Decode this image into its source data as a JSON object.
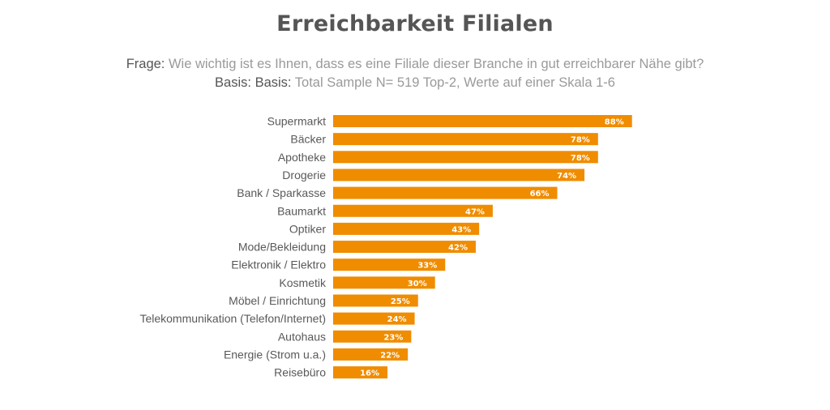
{
  "title": "Erreichbarkeit Filialen",
  "subtitle": {
    "question_label": "Frage:",
    "question": "Wie wichtig ist es Ihnen, dass es eine Filiale dieser Branche in gut erreichbarer Nähe gibt?",
    "basis_label": "Basis: Basis:",
    "basis": "Total Sample N= 519 Top-2, Werte auf einer Skala 1-6"
  },
  "colors": {
    "bar": "#f08c00",
    "label_text": "#595959",
    "value_text": "#ffffff"
  },
  "chart_data": {
    "type": "bar",
    "orientation": "horizontal",
    "title": "Erreichbarkeit Filialen",
    "categories": [
      "Supermarkt",
      "Bäcker",
      "Apotheke",
      "Drogerie",
      "Bank / Sparkasse",
      "Baumarkt",
      "Optiker",
      "Mode/Bekleidung",
      "Elektronik / Elektro",
      "Kosmetik",
      "Möbel / Einrichtung",
      "Telekommunikation (Telefon/Internet)",
      "Autohaus",
      "Energie (Strom u.a.)",
      "Reisebüro"
    ],
    "values": [
      88,
      78,
      78,
      74,
      66,
      47,
      43,
      42,
      33,
      30,
      25,
      24,
      23,
      22,
      16
    ],
    "value_labels": [
      "88%",
      "78%",
      "78%",
      "74%",
      "66%",
      "47%",
      "43%",
      "42%",
      "33%",
      "30%",
      "25%",
      "24%",
      "23%",
      "22%",
      "16%"
    ],
    "unit": "%",
    "xlim": [
      0,
      100
    ],
    "grid": false,
    "legend": "none"
  }
}
